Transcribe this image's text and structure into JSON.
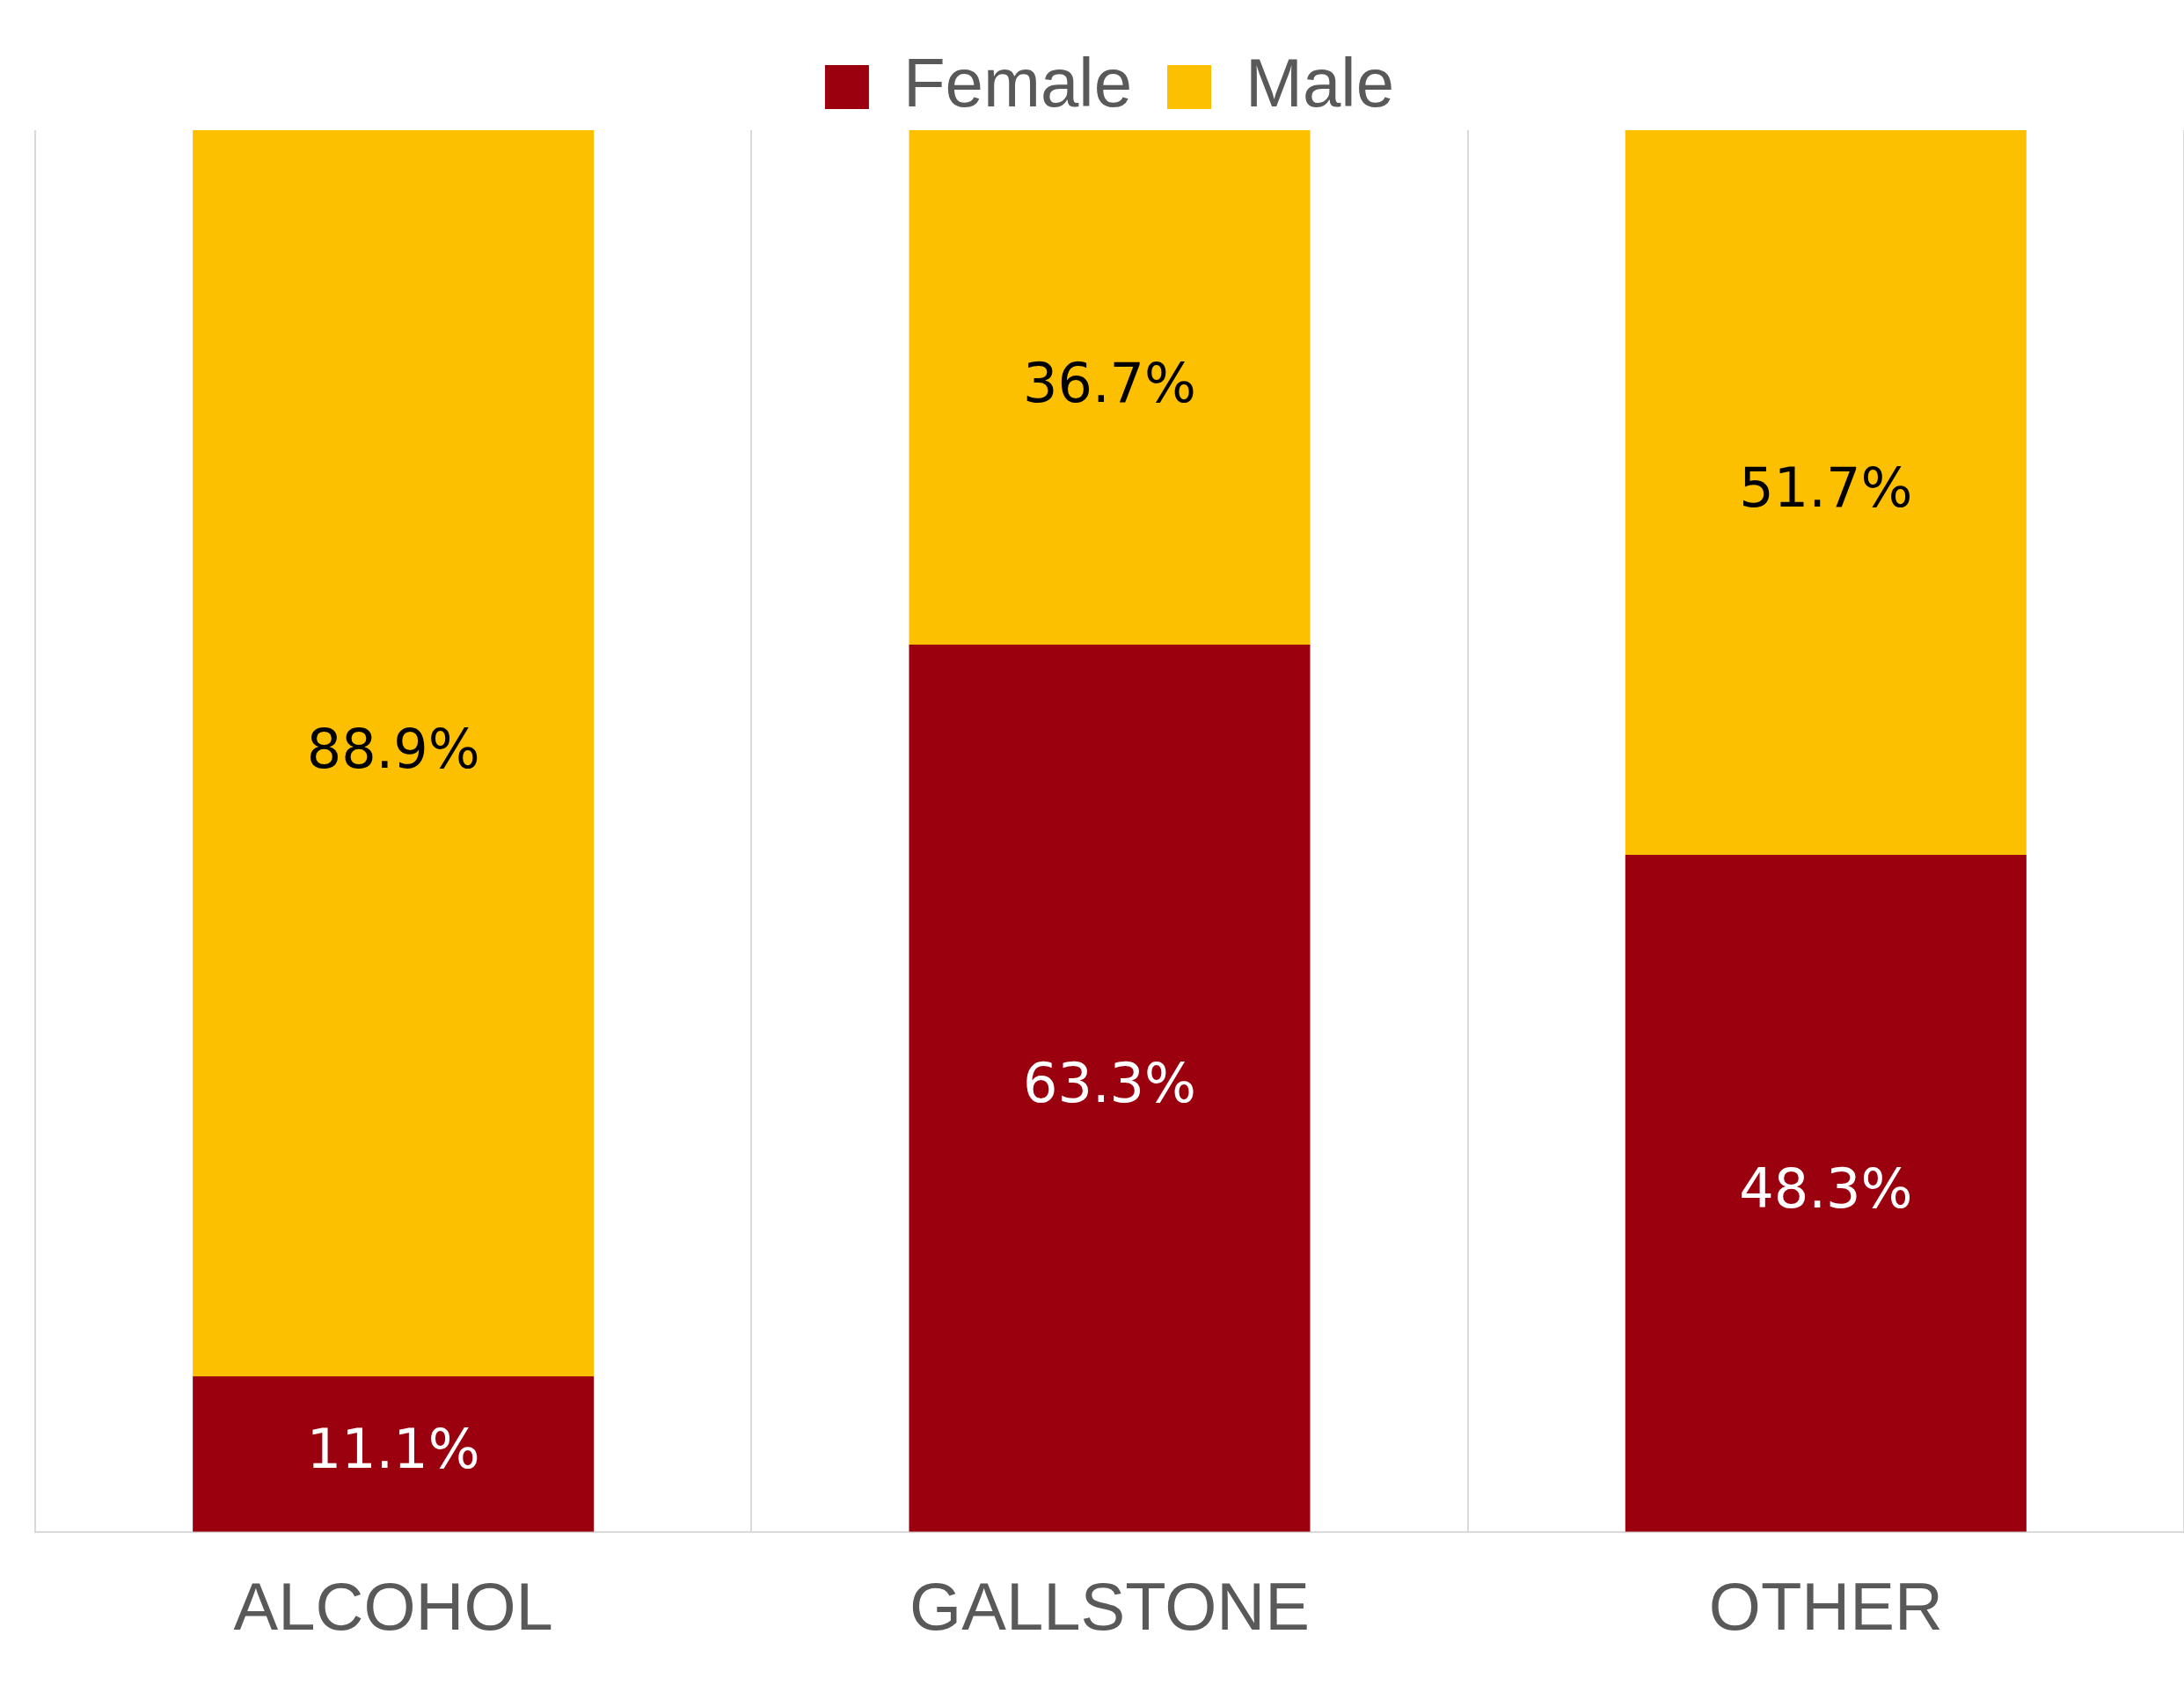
{
  "chart_data": {
    "type": "bar",
    "stacked": true,
    "categories": [
      "ALCOHOL",
      "GALLSTONE",
      "OTHER"
    ],
    "series": [
      {
        "name": "Female",
        "color": "#9b000e",
        "values": [
          11.1,
          63.3,
          48.3
        ],
        "value_labels": [
          "11.1%",
          "63.3%",
          "48.3%"
        ]
      },
      {
        "name": "Male",
        "color": "#fdc000",
        "values": [
          88.9,
          36.7,
          51.7
        ],
        "value_labels": [
          "88.9%",
          "36.7%",
          "51.7%"
        ]
      }
    ],
    "ylim": [
      0,
      100
    ],
    "tick_labels": "x",
    "grid": "x",
    "legend": "top"
  }
}
